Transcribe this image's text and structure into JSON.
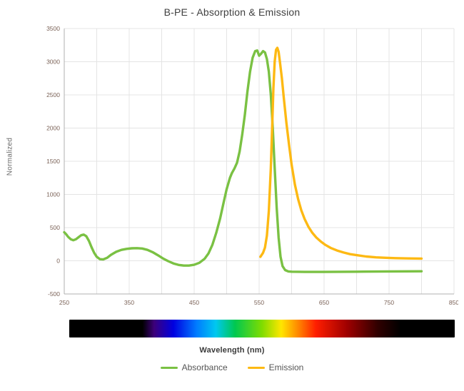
{
  "chart_data": {
    "type": "line",
    "title": "B-PE - Absorption & Emission",
    "xlabel": "Wavelength (nm)",
    "ylabel": "Normalized",
    "x_range": [
      250,
      850
    ],
    "y_range": [
      -500,
      3500
    ],
    "x_grid_step": 50,
    "y_grid_step": 500,
    "x_ticks": [
      250,
      350,
      450,
      550,
      650,
      750,
      850
    ],
    "y_ticks": [
      3500,
      3000,
      2500,
      2000,
      1500,
      1000,
      500,
      0,
      -500
    ],
    "grid": true,
    "legend_position": "bottom",
    "series": [
      {
        "name": "Absorbance",
        "color": "#7ac143",
        "points": [
          [
            250,
            430
          ],
          [
            253,
            400
          ],
          [
            256,
            360
          ],
          [
            260,
            325
          ],
          [
            264,
            310
          ],
          [
            268,
            325
          ],
          [
            272,
            355
          ],
          [
            276,
            385
          ],
          [
            280,
            395
          ],
          [
            284,
            370
          ],
          [
            288,
            300
          ],
          [
            292,
            205
          ],
          [
            296,
            120
          ],
          [
            300,
            60
          ],
          [
            305,
            25
          ],
          [
            310,
            20
          ],
          [
            316,
            45
          ],
          [
            322,
            90
          ],
          [
            330,
            135
          ],
          [
            338,
            165
          ],
          [
            346,
            180
          ],
          [
            354,
            188
          ],
          [
            362,
            190
          ],
          [
            370,
            185
          ],
          [
            378,
            165
          ],
          [
            386,
            130
          ],
          [
            394,
            85
          ],
          [
            402,
            35
          ],
          [
            410,
            -5
          ],
          [
            418,
            -40
          ],
          [
            426,
            -62
          ],
          [
            434,
            -72
          ],
          [
            442,
            -72
          ],
          [
            450,
            -60
          ],
          [
            458,
            -30
          ],
          [
            466,
            30
          ],
          [
            472,
            110
          ],
          [
            478,
            240
          ],
          [
            484,
            420
          ],
          [
            490,
            640
          ],
          [
            495,
            860
          ],
          [
            500,
            1080
          ],
          [
            505,
            1250
          ],
          [
            508,
            1320
          ],
          [
            512,
            1390
          ],
          [
            516,
            1480
          ],
          [
            520,
            1650
          ],
          [
            524,
            1900
          ],
          [
            528,
            2200
          ],
          [
            532,
            2550
          ],
          [
            536,
            2850
          ],
          [
            540,
            3060
          ],
          [
            544,
            3160
          ],
          [
            547,
            3170
          ],
          [
            550,
            3090
          ],
          [
            553,
            3120
          ],
          [
            556,
            3160
          ],
          [
            559,
            3140
          ],
          [
            562,
            3040
          ],
          [
            565,
            2850
          ],
          [
            568,
            2500
          ],
          [
            571,
            2000
          ],
          [
            574,
            1400
          ],
          [
            577,
            800
          ],
          [
            580,
            350
          ],
          [
            583,
            60
          ],
          [
            586,
            -80
          ],
          [
            590,
            -140
          ],
          [
            595,
            -160
          ],
          [
            600,
            -165
          ],
          [
            620,
            -168
          ],
          [
            650,
            -168
          ],
          [
            700,
            -165
          ],
          [
            750,
            -160
          ],
          [
            800,
            -158
          ]
        ]
      },
      {
        "name": "Emission",
        "color": "#fdb913",
        "points": [
          [
            552,
            60
          ],
          [
            556,
            120
          ],
          [
            559,
            200
          ],
          [
            562,
            380
          ],
          [
            565,
            750
          ],
          [
            568,
            1400
          ],
          [
            570,
            2000
          ],
          [
            572,
            2600
          ],
          [
            574,
            3000
          ],
          [
            576,
            3180
          ],
          [
            578,
            3210
          ],
          [
            580,
            3150
          ],
          [
            582,
            3000
          ],
          [
            585,
            2750
          ],
          [
            588,
            2450
          ],
          [
            592,
            2080
          ],
          [
            596,
            1750
          ],
          [
            600,
            1450
          ],
          [
            605,
            1150
          ],
          [
            610,
            930
          ],
          [
            615,
            760
          ],
          [
            620,
            630
          ],
          [
            626,
            510
          ],
          [
            632,
            420
          ],
          [
            638,
            350
          ],
          [
            645,
            290
          ],
          [
            652,
            240
          ],
          [
            660,
            195
          ],
          [
            670,
            155
          ],
          [
            680,
            125
          ],
          [
            690,
            100
          ],
          [
            700,
            85
          ],
          [
            715,
            65
          ],
          [
            730,
            52
          ],
          [
            745,
            45
          ],
          [
            760,
            40
          ],
          [
            780,
            35
          ],
          [
            800,
            33
          ]
        ]
      }
    ],
    "spectrum_bar": {
      "stops": [
        {
          "pos": 0,
          "color": "#000000"
        },
        {
          "pos": 19,
          "color": "#000000"
        },
        {
          "pos": 22,
          "color": "#3d007a"
        },
        {
          "pos": 27,
          "color": "#0000e0"
        },
        {
          "pos": 33,
          "color": "#007bff"
        },
        {
          "pos": 38,
          "color": "#00c8f0"
        },
        {
          "pos": 43,
          "color": "#00c850"
        },
        {
          "pos": 50,
          "color": "#7fdc00"
        },
        {
          "pos": 55,
          "color": "#ffe600"
        },
        {
          "pos": 59,
          "color": "#ff9000"
        },
        {
          "pos": 64,
          "color": "#ff1e00"
        },
        {
          "pos": 72,
          "color": "#a00000"
        },
        {
          "pos": 80,
          "color": "#300000"
        },
        {
          "pos": 86,
          "color": "#000000"
        },
        {
          "pos": 100,
          "color": "#000000"
        }
      ]
    },
    "style_colors": {
      "grid": "#e4e4e4",
      "axis": "#b0b0b0",
      "tick_label": "#7a6156",
      "title": "#404040"
    }
  }
}
